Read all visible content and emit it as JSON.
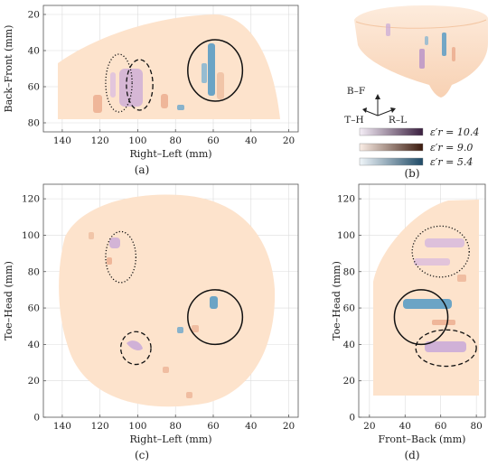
{
  "colors": {
    "background_tissue": "#fde3cc",
    "axis": "#555555",
    "grid": "#d9d9d9",
    "blue_inclusion": "#5b9cc4",
    "purple_inclusion": "#c8a8d8",
    "brown_inclusion": "#e8a383"
  },
  "chart_data": [
    {
      "type": "image-slice",
      "panel": "a",
      "caption": "(a)",
      "xlabel": "Right–Left (mm)",
      "ylabel": "Back–Front (mm)",
      "xlim": [
        150,
        15
      ],
      "ylim": [
        85,
        15
      ],
      "xticks": [
        140,
        120,
        100,
        80,
        60,
        40,
        20
      ],
      "yticks": [
        20,
        40,
        60,
        80
      ],
      "markers": [
        {
          "style": "dotted",
          "cx": 110,
          "cy": 58,
          "rx": 7,
          "ry": 16
        },
        {
          "style": "dashed",
          "cx": 99,
          "cy": 59,
          "rx": 7,
          "ry": 14
        },
        {
          "style": "solid",
          "cx": 59,
          "cy": 51,
          "rx": 14.5,
          "ry": 17
        }
      ]
    },
    {
      "type": "volume-render",
      "panel": "b",
      "caption": "(b)",
      "directions": {
        "up": "B–F",
        "left": "T–H",
        "right": "R–L"
      },
      "legend": [
        {
          "label": "ε′r = 10.4",
          "color_from": "#f5eef7",
          "color_to": "#3a1f3f"
        },
        {
          "label": "ε′r = 9.0",
          "color_from": "#fbeee6",
          "color_to": "#3b1a0e"
        },
        {
          "label": "ε′r = 5.4",
          "color_from": "#f0f6fa",
          "color_to": "#1f4a66"
        }
      ]
    },
    {
      "type": "image-slice",
      "panel": "c",
      "caption": "(c)",
      "xlabel": "Right–Left (mm)",
      "ylabel": "Toe–Head (mm)",
      "xlim": [
        150,
        15
      ],
      "ylim": [
        0,
        128
      ],
      "xticks": [
        140,
        120,
        100,
        80,
        60,
        40,
        20
      ],
      "yticks": [
        0,
        20,
        40,
        60,
        80,
        100,
        120
      ],
      "markers": [
        {
          "style": "dotted",
          "cx": 109,
          "cy": 88,
          "rx": 8,
          "ry": 14
        },
        {
          "style": "dashed",
          "cx": 101,
          "cy": 38,
          "rx": 8,
          "ry": 9
        },
        {
          "style": "solid",
          "cx": 59,
          "cy": 55,
          "rx": 14.5,
          "ry": 15
        }
      ]
    },
    {
      "type": "image-slice",
      "panel": "d",
      "caption": "(d)",
      "xlabel": "Front–Back (mm)",
      "ylabel": "Toe–Head (mm)",
      "xlim": [
        14,
        85
      ],
      "ylim": [
        0,
        128
      ],
      "xticks": [
        20,
        40,
        60,
        80
      ],
      "yticks": [
        0,
        20,
        40,
        60,
        80,
        100,
        120
      ],
      "markers": [
        {
          "style": "dotted",
          "cx": 60,
          "cy": 91,
          "rx": 16,
          "ry": 14
        },
        {
          "style": "dashed",
          "cx": 63,
          "cy": 38,
          "rx": 17,
          "ry": 10
        },
        {
          "style": "solid",
          "cx": 49,
          "cy": 55,
          "rx": 15,
          "ry": 15
        }
      ]
    }
  ]
}
